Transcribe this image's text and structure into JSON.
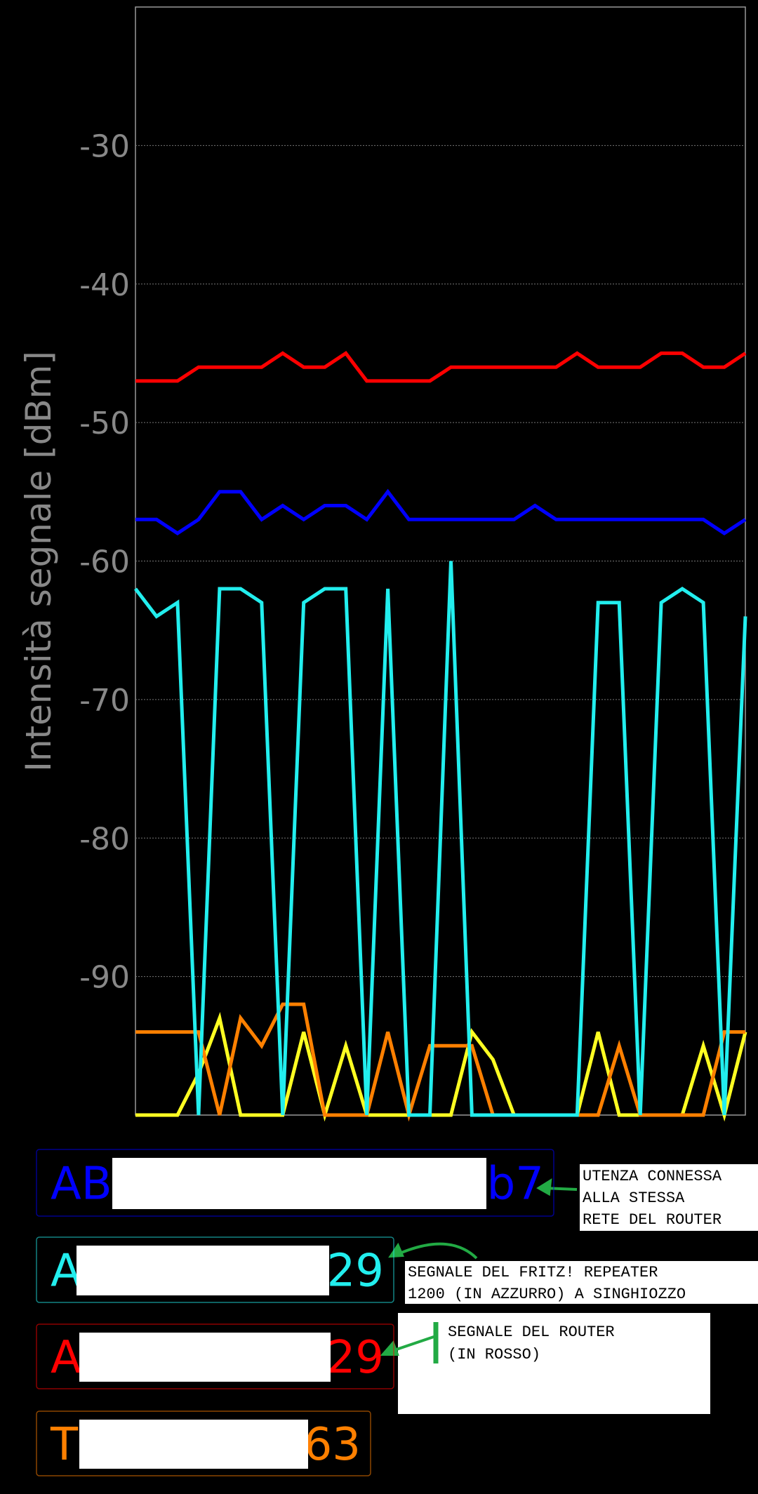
{
  "chart_data": {
    "type": "line",
    "ylabel": "Intensità segnale [dBm]",
    "ylim": [
      -100,
      -20
    ],
    "yticks": [
      -30,
      -40,
      -50,
      -60,
      -70,
      -80,
      -90
    ],
    "grid": true,
    "series": [
      {
        "color": "#ff0000",
        "label_start": "A",
        "label_end": "29",
        "values": [
          -47,
          -47,
          -47,
          -46,
          -46,
          -46,
          -46,
          -45,
          -46,
          -46,
          -45,
          -47,
          -47,
          -47,
          -47,
          -46,
          -46,
          -46,
          -46,
          -46,
          -46,
          -45,
          -46,
          -46,
          -46,
          -45,
          -45,
          -46,
          -46,
          -45
        ]
      },
      {
        "color": "#0000ff",
        "label_start": "AB",
        "label_end": "b7",
        "values": [
          -57,
          -57,
          -58,
          -57,
          -55,
          -55,
          -57,
          -56,
          -57,
          -56,
          -56,
          -57,
          -55,
          -57,
          -57,
          -57,
          -57,
          -57,
          -57,
          -56,
          -57,
          -57,
          -57,
          -57,
          -57,
          -57,
          -57,
          -57,
          -58,
          -57
        ]
      },
      {
        "color": "#22eeee",
        "label_start": "A",
        "label_end": "29",
        "values": [
          -62,
          -64,
          -63,
          -100,
          -62,
          -62,
          -63,
          -100,
          -63,
          -62,
          -62,
          -100,
          -62,
          -100,
          -100,
          -60,
          -100,
          -100,
          -100,
          -100,
          -100,
          -100,
          -63,
          -63,
          -100,
          -63,
          -62,
          -63,
          -100,
          -64
        ]
      },
      {
        "color": "#ff8000",
        "label_start": "T",
        "label_end": "63",
        "values": [
          -94,
          -94,
          -94,
          -94,
          -100,
          -93,
          -95,
          -92,
          -92,
          -100,
          -100,
          -100,
          -94,
          -100,
          -95,
          -95,
          -95,
          -100,
          -100,
          -100,
          -100,
          -100,
          -100,
          -95,
          -100,
          -100,
          -100,
          -100,
          -94,
          -94
        ]
      },
      {
        "color": "#ffff22",
        "values": [
          -100,
          -100,
          -100,
          -97,
          -93,
          -100,
          -100,
          -100,
          -94,
          -100,
          -95,
          -100,
          -100,
          -100,
          -100,
          -100,
          -94,
          -96,
          -100,
          -100,
          -100,
          -100,
          -94,
          -100,
          -100,
          -100,
          -100,
          -95,
          -100,
          -94
        ]
      }
    ],
    "legend_order": [
      1,
      2,
      0,
      3
    ],
    "annotations": [
      {
        "lines": [
          "UTENZA CONNESSA",
          "ALLA STESSA",
          "RETE DEL ROUTER"
        ]
      },
      {
        "lines": [
          "SEGNALE DEL FRITZ! REPEATER",
          "1200 (IN AZZURRO) A SINGHIOZZO"
        ]
      },
      {
        "lines": [
          "SEGNALE DEL ROUTER",
          "(IN ROSSO)"
        ]
      }
    ]
  }
}
